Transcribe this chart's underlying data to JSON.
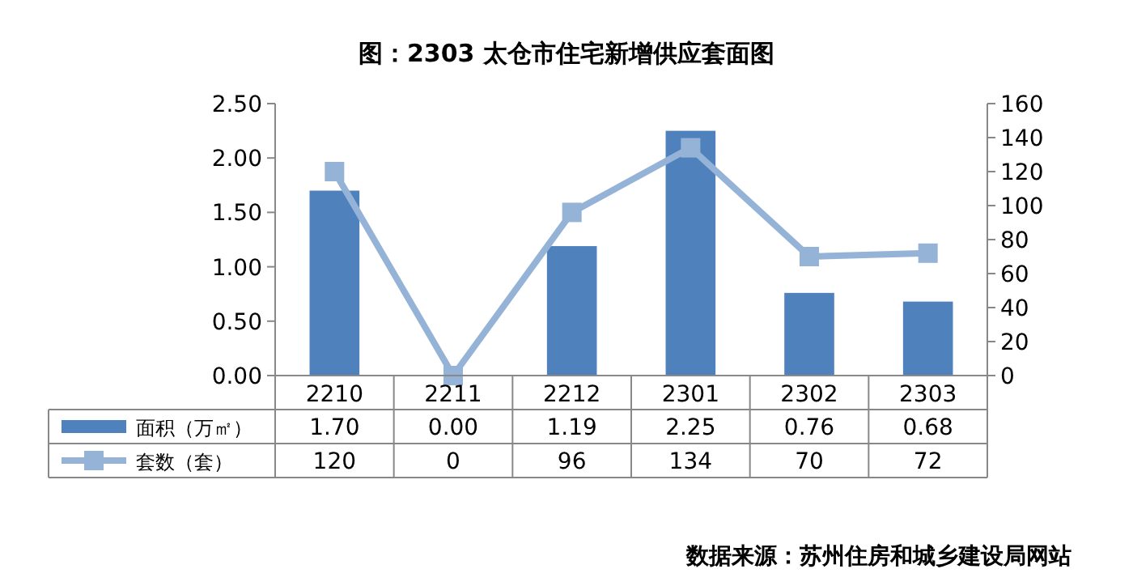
{
  "chart_data": {
    "type": "bar",
    "title": "图：2303 太仓市住宅新增供应套面图",
    "categories": [
      "2210",
      "2211",
      "2212",
      "2301",
      "2302",
      "2303"
    ],
    "series": [
      {
        "name": "面积（万㎡）",
        "color": "#4f81bd",
        "values": [
          1.7,
          0.0,
          1.19,
          2.25,
          0.76,
          0.68
        ],
        "value_labels": [
          "1.70",
          "0.00",
          "1.19",
          "2.25",
          "0.76",
          "0.68"
        ]
      },
      {
        "name": "套数（套）",
        "type": "line",
        "axis": "y2",
        "color": "#95b3d7",
        "marker": "square",
        "values": [
          120,
          0,
          96,
          134,
          70,
          72
        ],
        "value_labels": [
          "120",
          "0",
          "96",
          "134",
          "70",
          "72"
        ]
      }
    ],
    "ylim": [
      0,
      2.5
    ],
    "yticks": [
      {
        "value": 0,
        "label": "0.00"
      },
      {
        "value": 0.5,
        "label": "0.50"
      },
      {
        "value": 1,
        "label": "1.00"
      },
      {
        "value": 1.5,
        "label": "1.50"
      },
      {
        "value": 2,
        "label": "2.00"
      },
      {
        "value": 2.5,
        "label": "2.50"
      }
    ],
    "y2lim": [
      0,
      160
    ],
    "y2ticks": [
      0,
      20,
      40,
      60,
      80,
      100,
      120,
      140,
      160
    ],
    "legend": "bottom",
    "annotations": [
      "数据来源：苏州住房和城乡建设局网站"
    ]
  }
}
